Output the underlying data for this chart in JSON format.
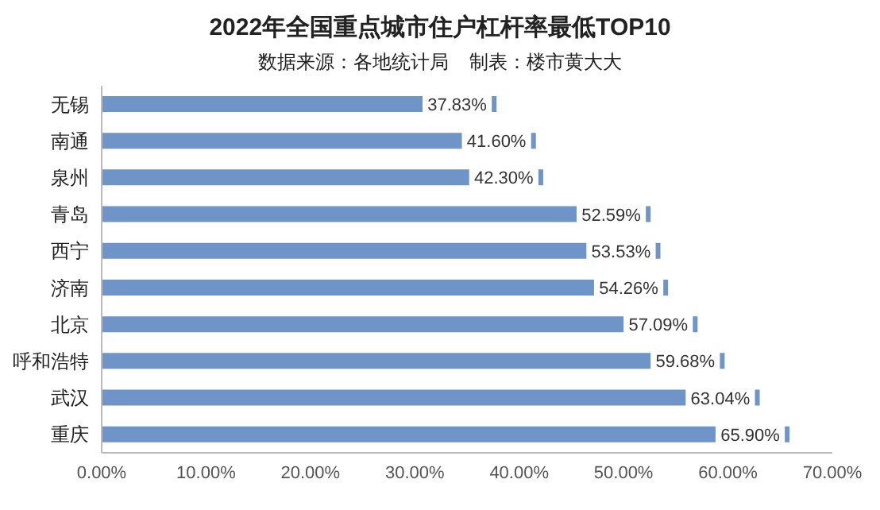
{
  "chart_data": {
    "type": "bar",
    "orientation": "horizontal",
    "title": "2022年全国重点城市住户杠杆率最低TOP10",
    "subtitle": "数据来源：各地统计局    制表：楼市黄大大",
    "categories": [
      "无锡",
      "南通",
      "泉州",
      "青岛",
      "西宁",
      "济南",
      "北京",
      "呼和浩特",
      "武汉",
      "重庆"
    ],
    "values": [
      37.83,
      41.6,
      42.3,
      52.59,
      53.53,
      54.26,
      57.09,
      59.68,
      63.04,
      65.9
    ],
    "value_labels": [
      "37.83%",
      "41.60%",
      "42.30%",
      "52.59%",
      "53.53%",
      "54.26%",
      "57.09%",
      "59.68%",
      "63.04%",
      "65.90%"
    ],
    "color": "#6f95c8",
    "xlim": [
      0,
      70
    ],
    "xticks": [
      {
        "value": 0,
        "label": "0.00%"
      },
      {
        "value": 10,
        "label": "10.00%"
      },
      {
        "value": 20,
        "label": "20.00%"
      },
      {
        "value": 30,
        "label": "30.00%"
      },
      {
        "value": 40,
        "label": "40.00%"
      },
      {
        "value": 50,
        "label": "50.00%"
      },
      {
        "value": 60,
        "label": "60.00%"
      },
      {
        "value": 70,
        "label": "70.00%"
      }
    ],
    "grid": false
  }
}
